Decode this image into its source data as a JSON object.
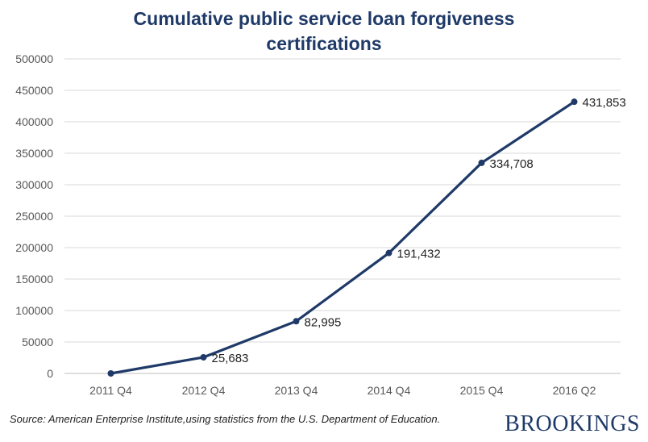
{
  "title_lines": [
    "Cumulative public service loan forgiveness",
    "certifications"
  ],
  "source": "Source: American Enterprise Institute,using statistics from the U.S. Department of Education.",
  "logo": "BROOKINGS",
  "colors": {
    "line": "#1f3a68",
    "grid": "#d9d9d9",
    "tick": "#595959"
  },
  "chart_data": {
    "type": "line",
    "categories": [
      "2011 Q4",
      "2012 Q4",
      "2013 Q4",
      "2014 Q4",
      "2015 Q4",
      "2016 Q2"
    ],
    "values": [
      0,
      25683,
      82995,
      191432,
      334708,
      431853
    ],
    "data_labels": [
      "",
      "25,683",
      "82,995",
      "191,432",
      "334,708",
      "431,853"
    ],
    "ylim": [
      0,
      500000
    ],
    "yticks": [
      0,
      50000,
      100000,
      150000,
      200000,
      250000,
      300000,
      350000,
      400000,
      450000,
      500000
    ],
    "ytick_labels": [
      "0",
      "50000",
      "100000",
      "150000",
      "200000",
      "250000",
      "300000",
      "350000",
      "400000",
      "450000",
      "500000"
    ],
    "grid": true,
    "legend": "none"
  }
}
